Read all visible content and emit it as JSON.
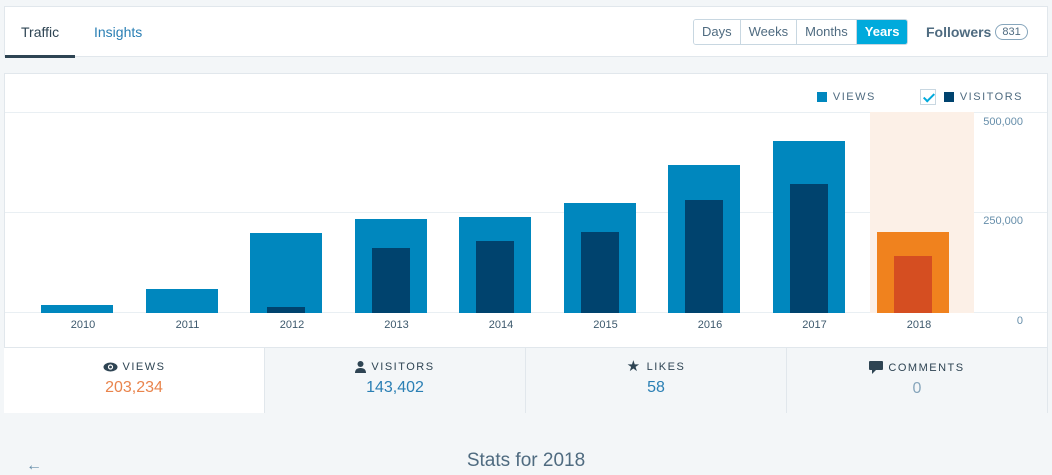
{
  "nav": {
    "tabs": [
      {
        "label": "Traffic",
        "active": true
      },
      {
        "label": "Insights",
        "active": false
      }
    ],
    "periods": [
      "Days",
      "Weeks",
      "Months",
      "Years"
    ],
    "selected_period": "Years",
    "followers_label": "Followers",
    "followers_count": "831"
  },
  "legend": {
    "views": "VIEWS",
    "visitors": "VISITORS",
    "visitors_checked": true
  },
  "colors": {
    "views": "#0087be",
    "visitors": "#00436e",
    "views_selected": "#f0821e",
    "visitors_selected": "#d54e21",
    "selected_bg": "#fcf0e7"
  },
  "chart_data": {
    "type": "bar",
    "categories": [
      "2010",
      "2011",
      "2012",
      "2013",
      "2014",
      "2015",
      "2016",
      "2017",
      "2018"
    ],
    "series": [
      {
        "name": "Views",
        "values": [
          20000,
          60000,
          200000,
          235000,
          240000,
          275000,
          370000,
          430000,
          203234
        ]
      },
      {
        "name": "Visitors",
        "values": [
          0,
          0,
          15000,
          162500,
          180000,
          202500,
          282500,
          322500,
          143402
        ]
      }
    ],
    "yticks": [
      "500,000",
      "250,000",
      "0"
    ],
    "ylim": [
      0,
      500000
    ],
    "selected_category": "2018",
    "legend_position": "top-right",
    "grid": true
  },
  "stats": [
    {
      "label": "VIEWS",
      "value": "203,234",
      "icon": "eye-icon"
    },
    {
      "label": "VISITORS",
      "value": "143,402",
      "icon": "user-icon"
    },
    {
      "label": "LIKES",
      "value": "58",
      "icon": "star-icon"
    },
    {
      "label": "COMMENTS",
      "value": "0",
      "icon": "comment-icon"
    }
  ],
  "footer": {
    "title": "Stats for 2018",
    "back_icon": "←"
  }
}
